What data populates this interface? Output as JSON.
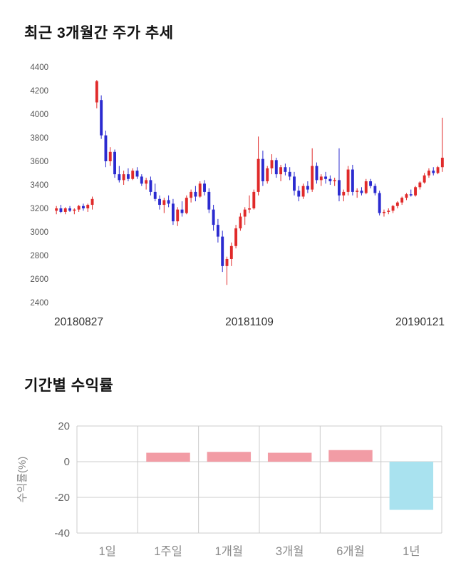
{
  "chart_data": [
    {
      "type": "candlestick",
      "title": "최근 3개월간 주가 추세",
      "x_labels": [
        "20180827",
        "20181109",
        "20190121"
      ],
      "y_ticks": [
        4400,
        4200,
        4000,
        3800,
        3600,
        3400,
        3200,
        3000,
        2800,
        2600,
        2400
      ],
      "ylim": [
        2400,
        4400
      ],
      "up_color": "#e02a2a",
      "down_color": "#2b2bd0",
      "tick_color": "#555555",
      "xlabel_color": "#333333",
      "candles": [
        [
          3180,
          3220,
          3150,
          3200
        ],
        [
          3200,
          3230,
          3160,
          3170
        ],
        [
          3170,
          3210,
          3150,
          3200
        ],
        [
          3200,
          3220,
          3170,
          3180
        ],
        [
          3180,
          3200,
          3150,
          3190
        ],
        [
          3190,
          3230,
          3170,
          3220
        ],
        [
          3220,
          3240,
          3180,
          3200
        ],
        [
          3200,
          3240,
          3170,
          3230
        ],
        [
          3230,
          3300,
          3190,
          3280
        ],
        [
          4100,
          4290,
          4050,
          4280
        ],
        [
          4120,
          4160,
          3790,
          3820
        ],
        [
          3820,
          3860,
          3550,
          3600
        ],
        [
          3600,
          3720,
          3560,
          3680
        ],
        [
          3680,
          3700,
          3460,
          3490
        ],
        [
          3490,
          3560,
          3420,
          3440
        ],
        [
          3440,
          3520,
          3400,
          3490
        ],
        [
          3490,
          3540,
          3430,
          3450
        ],
        [
          3450,
          3540,
          3440,
          3520
        ],
        [
          3520,
          3550,
          3450,
          3470
        ],
        [
          3470,
          3490,
          3390,
          3410
        ],
        [
          3410,
          3460,
          3360,
          3440
        ],
        [
          3440,
          3470,
          3310,
          3340
        ],
        [
          3340,
          3410,
          3260,
          3280
        ],
        [
          3280,
          3310,
          3190,
          3230
        ],
        [
          3230,
          3290,
          3160,
          3270
        ],
        [
          3270,
          3310,
          3210,
          3240
        ],
        [
          3240,
          3280,
          3060,
          3090
        ],
        [
          3090,
          3210,
          3050,
          3190
        ],
        [
          3190,
          3260,
          3130,
          3160
        ],
        [
          3160,
          3310,
          3150,
          3290
        ],
        [
          3290,
          3360,
          3250,
          3340
        ],
        [
          3340,
          3390,
          3260,
          3300
        ],
        [
          3300,
          3430,
          3290,
          3410
        ],
        [
          3410,
          3440,
          3310,
          3340
        ],
        [
          3340,
          3370,
          3160,
          3190
        ],
        [
          3190,
          3230,
          3010,
          3060
        ],
        [
          3060,
          3110,
          2910,
          2960
        ],
        [
          2960,
          3010,
          2660,
          2710
        ],
        [
          2710,
          2790,
          2550,
          2770
        ],
        [
          2770,
          2910,
          2710,
          2880
        ],
        [
          2880,
          3060,
          2860,
          3030
        ],
        [
          3030,
          3160,
          3010,
          3130
        ],
        [
          3130,
          3210,
          3060,
          3190
        ],
        [
          3190,
          3310,
          3160,
          3200
        ],
        [
          3200,
          3360,
          3190,
          3340
        ],
        [
          3340,
          3810,
          3310,
          3620
        ],
        [
          3620,
          3690,
          3390,
          3430
        ],
        [
          3430,
          3560,
          3410,
          3540
        ],
        [
          3540,
          3660,
          3490,
          3610
        ],
        [
          3610,
          3630,
          3460,
          3490
        ],
        [
          3490,
          3570,
          3430,
          3550
        ],
        [
          3550,
          3580,
          3480,
          3510
        ],
        [
          3510,
          3550,
          3440,
          3470
        ],
        [
          3470,
          3510,
          3310,
          3350
        ],
        [
          3350,
          3390,
          3260,
          3300
        ],
        [
          3300,
          3410,
          3280,
          3390
        ],
        [
          3390,
          3430,
          3330,
          3360
        ],
        [
          3360,
          3710,
          3340,
          3560
        ],
        [
          3560,
          3590,
          3410,
          3440
        ],
        [
          3440,
          3490,
          3390,
          3470
        ],
        [
          3470,
          3510,
          3410,
          3450
        ],
        [
          3450,
          3480,
          3400,
          3430
        ],
        [
          3430,
          3460,
          3390,
          3440
        ],
        [
          3440,
          3710,
          3260,
          3310
        ],
        [
          3310,
          3360,
          3260,
          3340
        ],
        [
          3340,
          3560,
          3310,
          3530
        ],
        [
          3530,
          3570,
          3310,
          3340
        ],
        [
          3340,
          3370,
          3290,
          3350
        ],
        [
          3350,
          3380,
          3310,
          3330
        ],
        [
          3330,
          3450,
          3320,
          3430
        ],
        [
          3430,
          3450,
          3370,
          3390
        ],
        [
          3390,
          3410,
          3310,
          3330
        ],
        [
          3330,
          3350,
          3140,
          3160
        ],
        [
          3160,
          3190,
          3130,
          3170
        ],
        [
          3170,
          3200,
          3150,
          3180
        ],
        [
          3180,
          3230,
          3160,
          3220
        ],
        [
          3220,
          3260,
          3200,
          3250
        ],
        [
          3250,
          3300,
          3230,
          3290
        ],
        [
          3290,
          3330,
          3270,
          3320
        ],
        [
          3320,
          3360,
          3300,
          3310
        ],
        [
          3310,
          3390,
          3300,
          3380
        ],
        [
          3380,
          3430,
          3360,
          3420
        ],
        [
          3420,
          3500,
          3410,
          3480
        ],
        [
          3480,
          3540,
          3460,
          3520
        ],
        [
          3520,
          3550,
          3480,
          3500
        ],
        [
          3500,
          3560,
          3490,
          3550
        ],
        [
          3550,
          3970,
          3510,
          3630
        ]
      ]
    },
    {
      "type": "bar",
      "title": "기간별 수익률",
      "ylabel": "수익률(%)",
      "categories": [
        "1일",
        "1주일",
        "1개월",
        "3개월",
        "6개월",
        "1년"
      ],
      "values": [
        0,
        5,
        5.5,
        5,
        6.5,
        -27
      ],
      "y_ticks": [
        20,
        0,
        -20,
        -40
      ],
      "ylim": [
        -40,
        20
      ],
      "positive_color": "#f29ca5",
      "negative_color": "#a9e2ef",
      "grid_color": "#cccccc",
      "tick_color": "#666666",
      "xlabel_color": "#8a8a8a",
      "ylabel_color": "#888888"
    }
  ]
}
